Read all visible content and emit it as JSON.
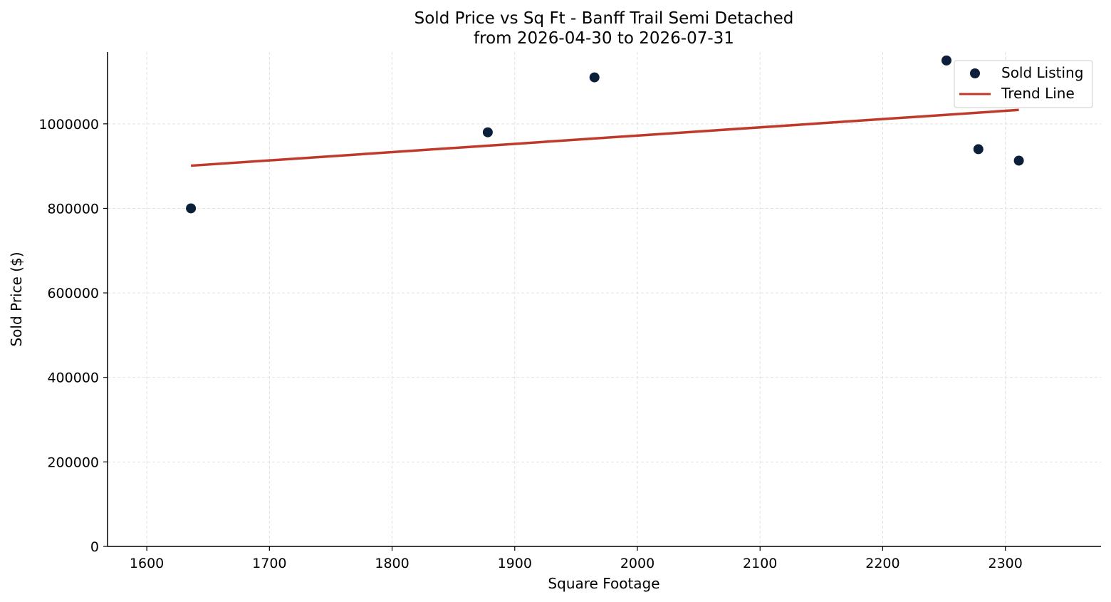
{
  "chart_data": {
    "type": "scatter",
    "title": "Sold Price vs Sq Ft - Banff Trail Semi Detached",
    "subtitle": "from 2026-04-30 to 2026-07-31",
    "xlabel": "Square Footage",
    "ylabel": "Sold Price ($)",
    "xlim": [
      1568,
      2378
    ],
    "ylim": [
      0,
      1170000
    ],
    "x_ticks": [
      1600,
      1700,
      1800,
      1900,
      2000,
      2100,
      2200,
      2300
    ],
    "y_ticks": [
      0,
      200000,
      400000,
      600000,
      800000,
      1000000
    ],
    "grid": true,
    "legend_position": "top-right",
    "series": [
      {
        "name": "Sold Listing",
        "kind": "scatter",
        "color": "#0b1f3a",
        "points": [
          {
            "x": 1636,
            "y": 800000
          },
          {
            "x": 1878,
            "y": 980000
          },
          {
            "x": 1965,
            "y": 1110000
          },
          {
            "x": 2252,
            "y": 1150000
          },
          {
            "x": 2278,
            "y": 940000
          },
          {
            "x": 2311,
            "y": 913000
          }
        ]
      },
      {
        "name": "Trend Line",
        "kind": "line",
        "color": "#c0392b",
        "points": [
          {
            "x": 1636,
            "y": 901000
          },
          {
            "x": 2311,
            "y": 1033000
          }
        ]
      }
    ]
  }
}
